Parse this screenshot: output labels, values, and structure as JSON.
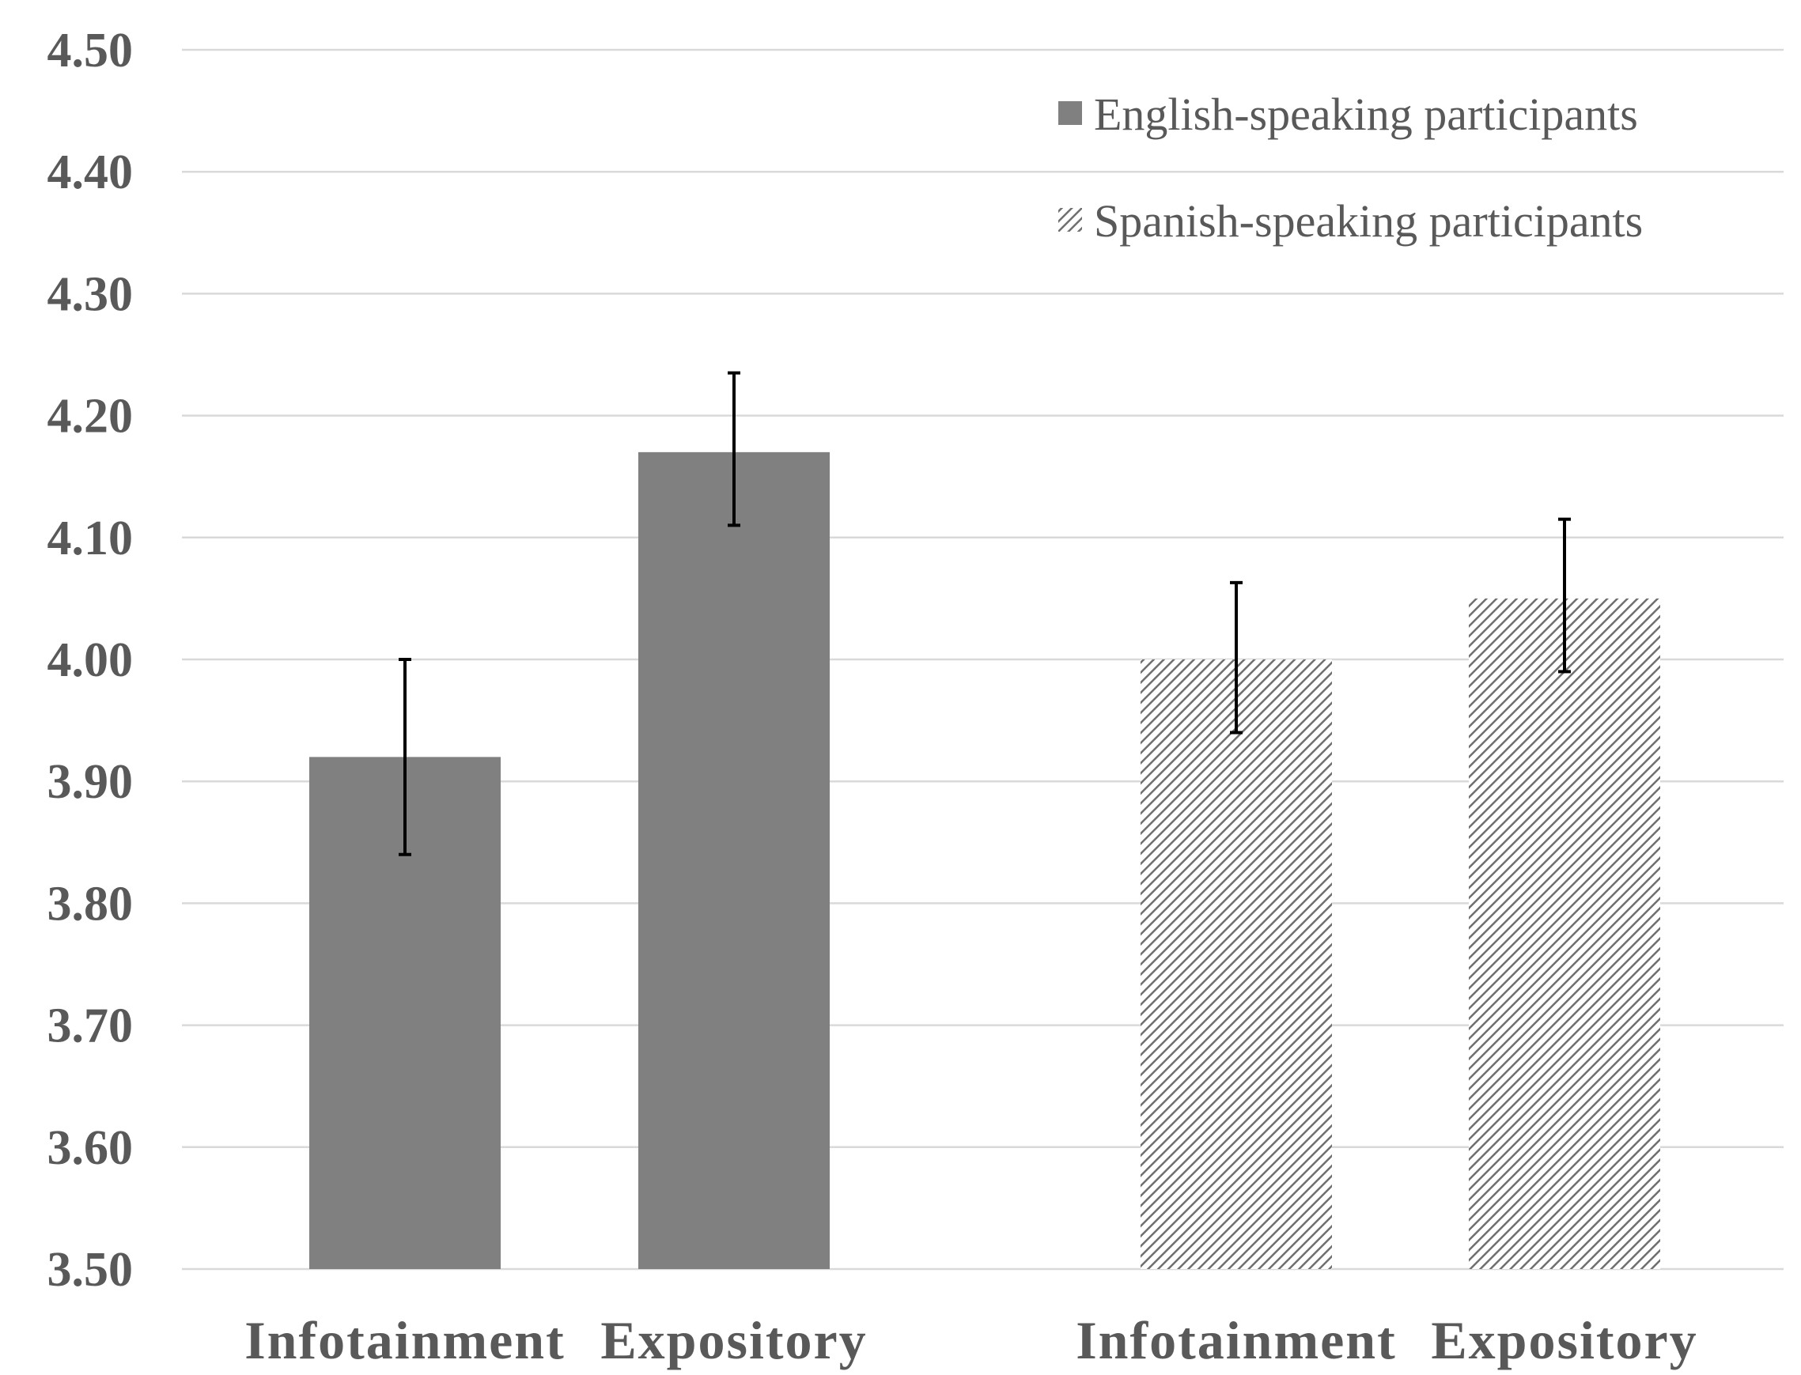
{
  "chart_data": {
    "type": "bar",
    "title": "",
    "xlabel": "",
    "ylabel": "",
    "ylim": [
      3.5,
      4.5
    ],
    "yticks": [
      "3.50",
      "3.60",
      "3.70",
      "3.80",
      "3.90",
      "4.00",
      "4.10",
      "4.20",
      "4.30",
      "4.40",
      "4.50"
    ],
    "grid": true,
    "legend_position": "top-right",
    "groups": [
      {
        "name": "English-speaking participants",
        "style": "solid",
        "color": "#808080",
        "categories": [
          "Infotainment",
          "Expository"
        ],
        "values": [
          3.92,
          4.17
        ],
        "error_low": [
          3.84,
          4.11
        ],
        "error_high": [
          4.0,
          4.235
        ]
      },
      {
        "name": "Spanish-speaking participants",
        "style": "hatched",
        "color": "#7f7f7f",
        "categories": [
          "Infotainment",
          "Expository"
        ],
        "values": [
          4.0,
          4.05
        ],
        "error_low": [
          3.94,
          3.99
        ],
        "error_high": [
          4.063,
          4.115
        ]
      }
    ]
  }
}
